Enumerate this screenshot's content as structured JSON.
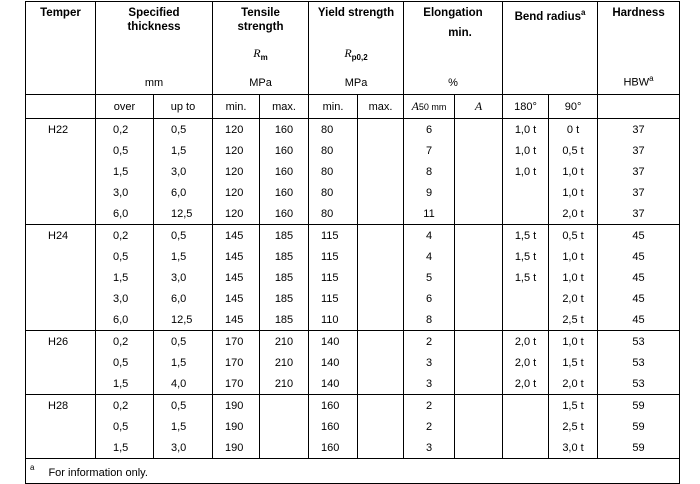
{
  "headers": {
    "temper": "Temper",
    "thickness": "Specified thickness",
    "thickness_unit": "mm",
    "tensile": "Tensile strength",
    "tensile_sym": "R",
    "tensile_sub": "m",
    "tensile_unit": "MPa",
    "yield": "Yield strength",
    "yield_sym": "R",
    "yield_sub": "p0,2",
    "yield_unit": "MPa",
    "elongation": "Elongation",
    "elongation_min": "min.",
    "elongation_unit": "%",
    "bend": "Bend radius",
    "bend_note": "a",
    "hardness": "Hardness",
    "hardness_unit": "HBW",
    "hardness_note": "a"
  },
  "subheaders": {
    "over": "over",
    "up_to": "up to",
    "t_min": "min.",
    "t_max": "max.",
    "y_min": "min.",
    "y_max": "max.",
    "a50": "A",
    "a50_sub": "50 mm",
    "a": "A",
    "b180": "180°",
    "b90": "90°"
  },
  "groups": [
    {
      "temper": "H22",
      "rows": [
        [
          "0,2",
          "0,5",
          "120",
          "160",
          "80",
          "",
          "6",
          "",
          "1,0 t",
          "0 t",
          "37"
        ],
        [
          "0,5",
          "1,5",
          "120",
          "160",
          "80",
          "",
          "7",
          "",
          "1,0 t",
          "0,5 t",
          "37"
        ],
        [
          "1,5",
          "3,0",
          "120",
          "160",
          "80",
          "",
          "8",
          "",
          "1,0 t",
          "1,0 t",
          "37"
        ],
        [
          "3,0",
          "6,0",
          "120",
          "160",
          "80",
          "",
          "9",
          "",
          "",
          "1,0 t",
          "37"
        ],
        [
          "6,0",
          "12,5",
          "120",
          "160",
          "80",
          "",
          "11",
          "",
          "",
          "2,0 t",
          "37"
        ]
      ]
    },
    {
      "temper": "H24",
      "rows": [
        [
          "0,2",
          "0,5",
          "145",
          "185",
          "115",
          "",
          "4",
          "",
          "1,5 t",
          "0,5 t",
          "45"
        ],
        [
          "0,5",
          "1,5",
          "145",
          "185",
          "115",
          "",
          "4",
          "",
          "1,5 t",
          "1,0 t",
          "45"
        ],
        [
          "1,5",
          "3,0",
          "145",
          "185",
          "115",
          "",
          "5",
          "",
          "1,5 t",
          "1,0 t",
          "45"
        ],
        [
          "3,0",
          "6,0",
          "145",
          "185",
          "115",
          "",
          "6",
          "",
          "",
          "2,0 t",
          "45"
        ],
        [
          "6,0",
          "12,5",
          "145",
          "185",
          "110",
          "",
          "8",
          "",
          "",
          "2,5 t",
          "45"
        ]
      ]
    },
    {
      "temper": "H26",
      "rows": [
        [
          "0,2",
          "0,5",
          "170",
          "210",
          "140",
          "",
          "2",
          "",
          "2,0 t",
          "1,0 t",
          "53"
        ],
        [
          "0,5",
          "1,5",
          "170",
          "210",
          "140",
          "",
          "3",
          "",
          "2,0 t",
          "1,5 t",
          "53"
        ],
        [
          "1,5",
          "4,0",
          "170",
          "210",
          "140",
          "",
          "3",
          "",
          "2,0 t",
          "2,0 t",
          "53"
        ]
      ]
    },
    {
      "temper": "H28",
      "rows": [
        [
          "0,2",
          "0,5",
          "190",
          "",
          "160",
          "",
          "2",
          "",
          "",
          "1,5 t",
          "59"
        ],
        [
          "0,5",
          "1,5",
          "190",
          "",
          "160",
          "",
          "2",
          "",
          "",
          "2,5 t",
          "59"
        ],
        [
          "1,5",
          "3,0",
          "190",
          "",
          "160",
          "",
          "3",
          "",
          "",
          "3,0 t",
          "59"
        ]
      ]
    }
  ],
  "footnote": {
    "mark": "a",
    "text": "For information only."
  }
}
